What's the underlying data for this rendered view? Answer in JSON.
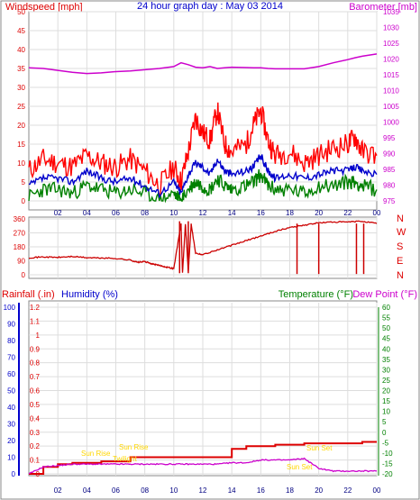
{
  "title": "24 hour graph day : May 03 2014",
  "colors": {
    "wind": "#ff0000",
    "wind_avg": "#0000cc",
    "wind_low": "#008000",
    "barometer": "#cc00cc",
    "direction": "#cc0000",
    "rainfall": "#dd0000",
    "humidity": "#cc00cc",
    "temperature": "#008000",
    "dewpoint": "#cc00cc",
    "humidity_axis": "#0000cc",
    "annotation": "#ffd700",
    "frame": "#888888",
    "grid": "#dddddd"
  },
  "x_ticks": [
    "02",
    "04",
    "06",
    "08",
    "10",
    "12",
    "14",
    "16",
    "18",
    "20",
    "22",
    "00"
  ],
  "chart_data": [
    {
      "type": "line",
      "name": "wind-and-pressure",
      "left_label": "Windspeed [mph]",
      "right_label": "Barometer [mb]",
      "ylim_left": [
        0,
        50
      ],
      "ylim_right": [
        975,
        1035
      ],
      "left_ticks": [
        "0",
        "5",
        "10",
        "15",
        "20",
        "25",
        "30",
        "35",
        "40",
        "45",
        "50"
      ],
      "right_ticks": [
        "975",
        "980",
        "985",
        "990",
        "995",
        "1000",
        "1005",
        "1010",
        "1015",
        "1020",
        "1025",
        "1030",
        "1035"
      ],
      "x_hours": [
        0,
        1,
        2,
        3,
        4,
        5,
        6,
        7,
        8,
        9,
        10,
        10.5,
        11,
        11.5,
        12,
        12.5,
        13,
        13.5,
        14,
        15,
        15.5,
        16,
        16.5,
        17,
        18,
        19,
        20,
        21,
        22,
        22.5,
        23,
        24
      ],
      "series": [
        {
          "key": "gust",
          "values": [
            8,
            11,
            10,
            9,
            12,
            10,
            9,
            11,
            8,
            4,
            9,
            5,
            13,
            22,
            18,
            16,
            24,
            15,
            13,
            15,
            20,
            24,
            16,
            12,
            13,
            10,
            12,
            14,
            15,
            17,
            13,
            12
          ]
        },
        {
          "key": "avg",
          "values": [
            4,
            6,
            6,
            5,
            8,
            6,
            5,
            6,
            4,
            2,
            5,
            2,
            7,
            10,
            9,
            7,
            11,
            8,
            7,
            8,
            9,
            12,
            8,
            6,
            7,
            6,
            7,
            8,
            8,
            9,
            8,
            7
          ]
        },
        {
          "key": "low",
          "values": [
            1,
            3,
            3,
            2,
            4,
            3,
            2,
            3,
            2,
            0,
            2,
            0,
            3,
            5,
            4,
            3,
            6,
            4,
            3,
            4,
            5,
            7,
            4,
            3,
            3,
            2,
            4,
            4,
            5,
            5,
            4,
            3
          ]
        },
        {
          "key": "barometer",
          "values": [
            1017.2,
            1017.0,
            1016.4,
            1015.8,
            1015.4,
            1015.6,
            1016.0,
            1016.2,
            1016.6,
            1017.0,
            1017.6,
            1018.8,
            1018.2,
            1017.4,
            1017.2,
            1017.6,
            1017.0,
            1017.2,
            1017.4,
            1017.3,
            1017.2,
            1017.2,
            1017.0,
            1016.9,
            1016.9,
            1016.9,
            1017.6,
            1018.8,
            1019.8,
            1020.4,
            1020.9,
            1021.6
          ]
        }
      ]
    },
    {
      "type": "line",
      "name": "wind-direction",
      "ylim": [
        0,
        360
      ],
      "left_ticks": [
        "0",
        "90",
        "180",
        "270",
        "360"
      ],
      "right_ticks": [
        "N",
        "W",
        "S",
        "E",
        "N"
      ],
      "x_hours": [
        0,
        1,
        2,
        3,
        4,
        5,
        6,
        7,
        7.5,
        8,
        8.5,
        9,
        9.5,
        10,
        10.5,
        10.6,
        10.8,
        11,
        11.2,
        11.5,
        12,
        13,
        14,
        15,
        16,
        17,
        18,
        19,
        20,
        21,
        22,
        23,
        24
      ],
      "values": [
        110,
        115,
        112,
        118,
        110,
        108,
        105,
        95,
        80,
        85,
        70,
        60,
        50,
        40,
        330,
        10,
        330,
        20,
        330,
        140,
        130,
        160,
        190,
        220,
        250,
        280,
        305,
        320,
        335,
        340,
        340,
        345,
        330
      ]
    },
    {
      "type": "line",
      "name": "rain-humidity-temperature",
      "left_label": "Rainfall (.in)",
      "left2_label": "Humidity (%)",
      "right_label": "Temperature (°F)",
      "right2_label": "Dew Point (°F)",
      "rain_ticks": [
        "0",
        "0.1",
        "0.2",
        "0.3",
        "0.4",
        "0.5",
        "0.6",
        "0.7",
        "0.8",
        "0.9",
        "1",
        "1.1",
        "1.2"
      ],
      "humidity_ticks": [
        "0",
        "10",
        "20",
        "30",
        "40",
        "50",
        "60",
        "70",
        "80",
        "90",
        "100"
      ],
      "temp_ticks": [
        "-20",
        "-15",
        "-10",
        "-5",
        "0",
        "5",
        "10",
        "15",
        "20",
        "25",
        "30",
        "35",
        "40",
        "45",
        "50",
        "55",
        "60"
      ],
      "ylim_rain": [
        0,
        1.2
      ],
      "ylim_humidity": [
        0,
        100
      ],
      "ylim_temp": [
        -20,
        60
      ],
      "x_hours": [
        0,
        1,
        2,
        3,
        4,
        5,
        6,
        7,
        8,
        9,
        10,
        11,
        12,
        13,
        14,
        15,
        16,
        17,
        18,
        19,
        20,
        21,
        22,
        23,
        24
      ],
      "series": [
        {
          "key": "rainfall",
          "values": [
            0,
            0.05,
            0.07,
            0.08,
            0.08,
            0.09,
            0.09,
            0.12,
            0.12,
            0.12,
            0.12,
            0.12,
            0.12,
            0.12,
            0.18,
            0.2,
            0.2,
            0.21,
            0.21,
            0.22,
            0.22,
            0.22,
            0.22,
            0.23,
            0.23
          ]
        },
        {
          "key": "humidity",
          "values": [
            0,
            5,
            6,
            7,
            7,
            7,
            7,
            7,
            7,
            7,
            7,
            7,
            7,
            7,
            8,
            8,
            10,
            10,
            10,
            11,
            4,
            2,
            2,
            2,
            2
          ]
        }
      ],
      "annotations": [
        "Sun Rise",
        "Sun Rise",
        "Twilight",
        "Sun Set",
        "Sun Set"
      ]
    }
  ]
}
